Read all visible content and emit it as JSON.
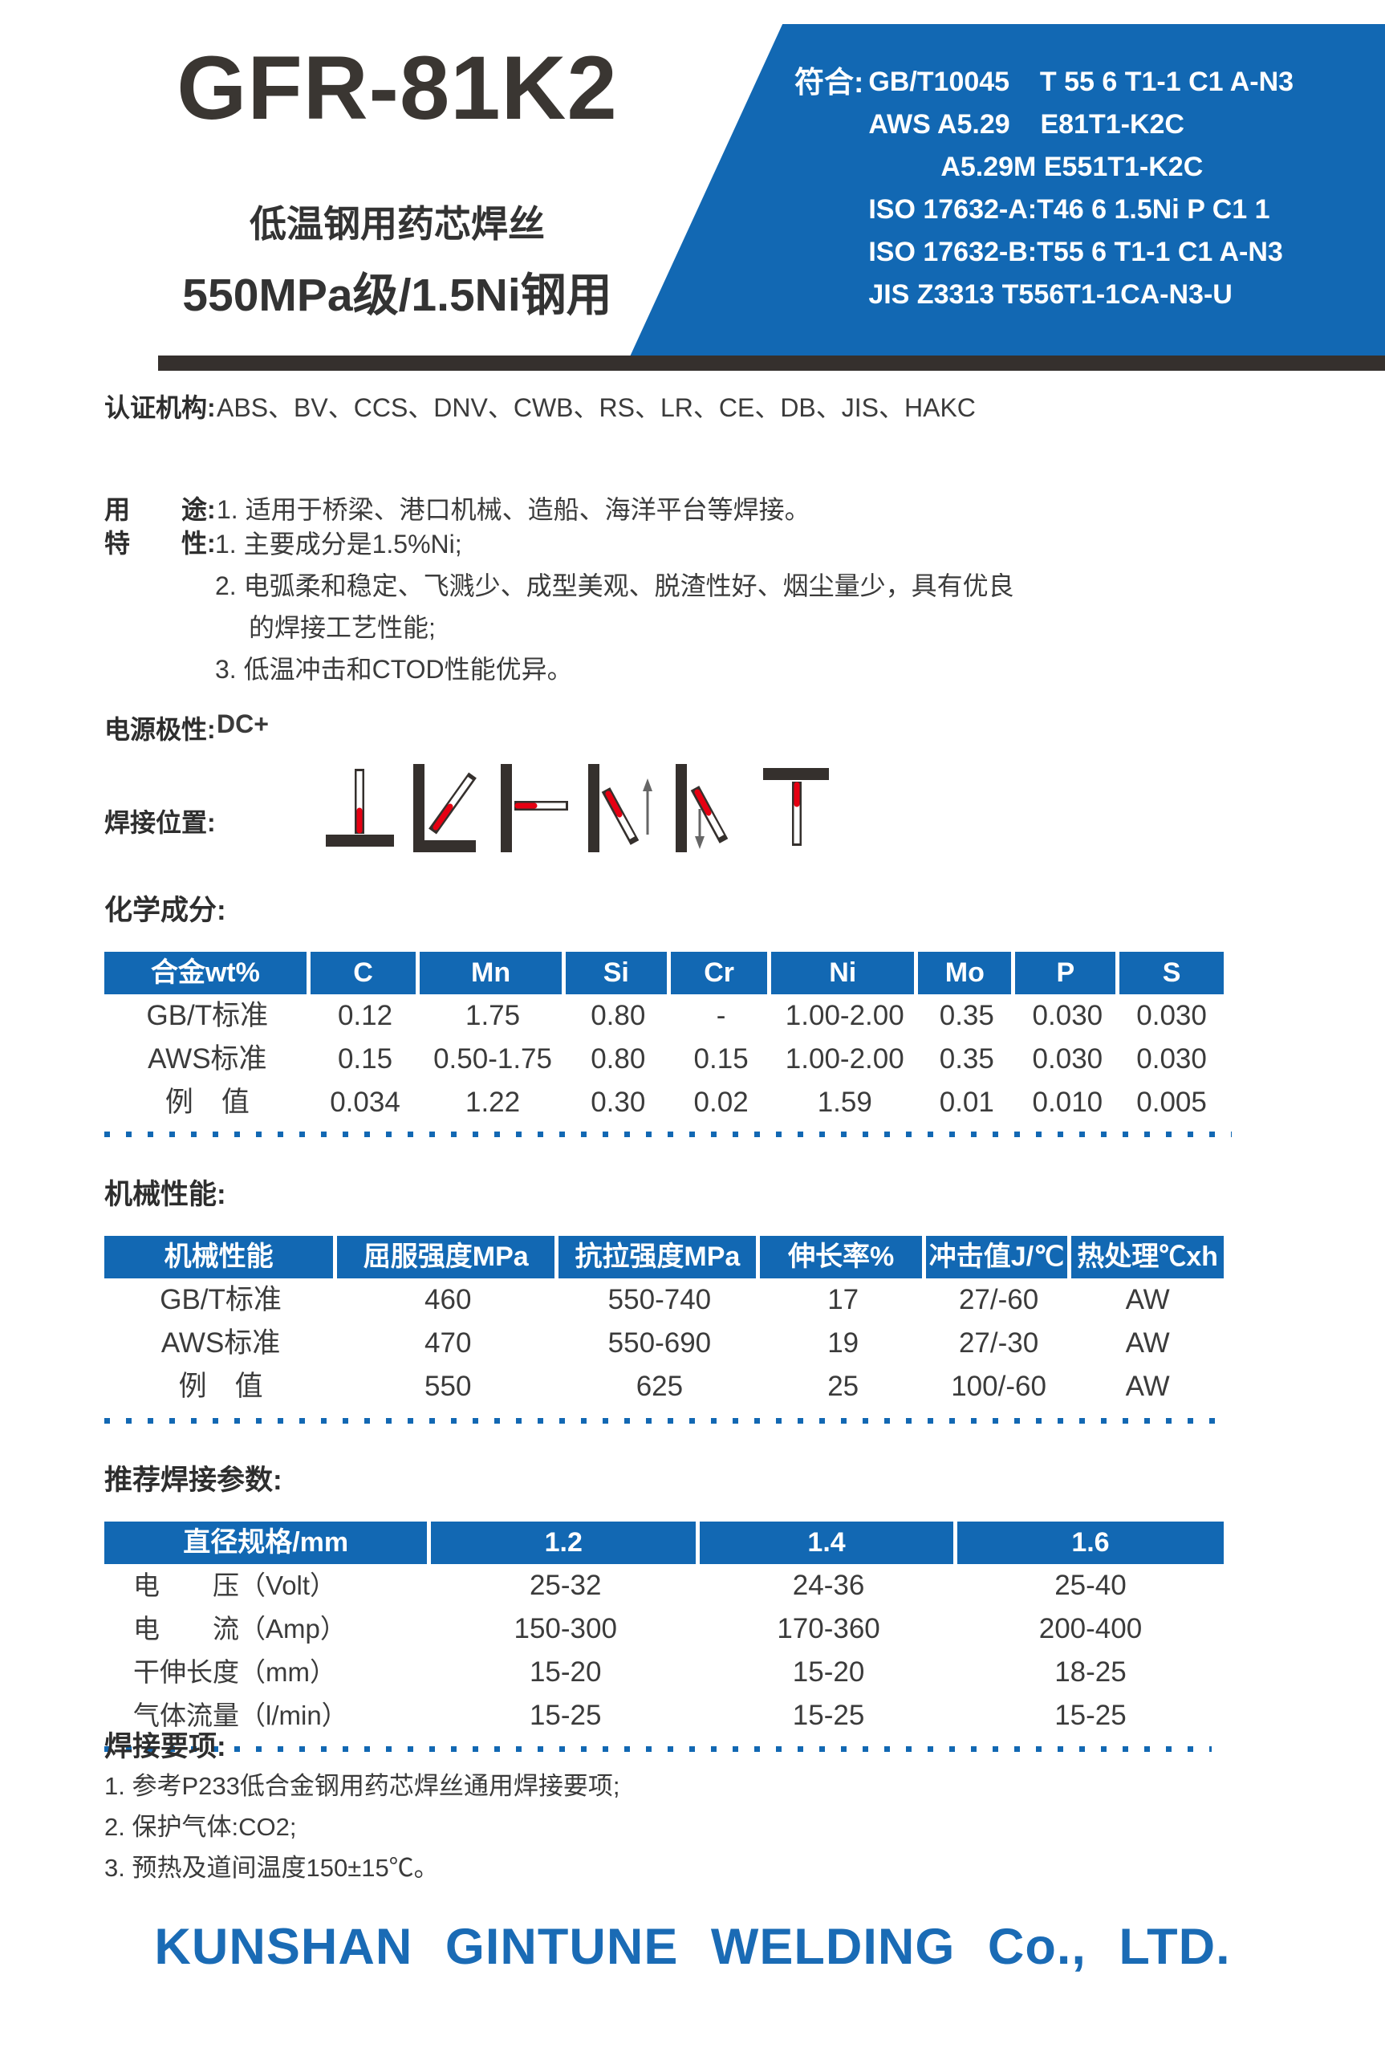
{
  "header": {
    "product_code": "GFR-81K2",
    "subtitle1": "低温钢用药芯焊丝",
    "subtitle2": "550MPa级/1.5Ni钢用",
    "standards_label": "符合:",
    "standards": [
      "GB/T10045    T 55 6 T1-1 C1 A-N3",
      "AWS A5.29    E81T1-K2C",
      "A5.29M E551T1-K2C",
      "ISO 17632-A:T46 6 1.5Ni P C1 1",
      "ISO 17632-B:T55 6 T1-1 C1 A-N3",
      "JIS Z3313 T556T1-1CA-N3-U"
    ]
  },
  "info": {
    "certification": {
      "label": "认证机构:",
      "value": "ABS、BV、CCS、DNV、CWB、RS、LR、CE、DB、JIS、HAKC"
    },
    "usage": {
      "label": "用　　途:",
      "value": "1. 适用于桥梁、港口机械、造船、海洋平台等焊接。"
    },
    "features": {
      "label": "特　　性:",
      "items": [
        "1. 主要成分是1.5%Ni;",
        "2. 电弧柔和稳定、飞溅少、成型美观、脱渣性好、烟尘量少，具有优良",
        "的焊接工艺性能;",
        "3. 低温冲击和CTOD性能优异。"
      ]
    },
    "polarity": {
      "label": "电源极性:",
      "value": "DC+"
    },
    "positions": {
      "label": "焊接位置:",
      "icons": [
        "flat",
        "horizontal-fillet",
        "horizontal",
        "vertical-up",
        "vertical-down",
        "overhead"
      ]
    }
  },
  "chemical": {
    "title": "化学成分:",
    "headers": [
      "合金wt%",
      "C",
      "Mn",
      "Si",
      "Cr",
      "Ni",
      "Mo",
      "P",
      "S"
    ],
    "rows": [
      [
        "GB/T标准",
        "0.12",
        "1.75",
        "0.80",
        "-",
        "1.00-2.00",
        "0.35",
        "0.030",
        "0.030"
      ],
      [
        "AWS标准",
        "0.15",
        "0.50-1.75",
        "0.80",
        "0.15",
        "1.00-2.00",
        "0.35",
        "0.030",
        "0.030"
      ],
      [
        "例　值",
        "0.034",
        "1.22",
        "0.30",
        "0.02",
        "1.59",
        "0.01",
        "0.010",
        "0.005"
      ]
    ]
  },
  "mechanical": {
    "title": "机械性能:",
    "headers": [
      "机械性能",
      "屈服强度MPa",
      "抗拉强度MPa",
      "伸长率%",
      "冲击值J/℃",
      "热处理℃xh"
    ],
    "rows": [
      [
        "GB/T标准",
        "460",
        "550-740",
        "17",
        "27/-60",
        "AW"
      ],
      [
        "AWS标准",
        "470",
        "550-690",
        "19",
        "27/-30",
        "AW"
      ],
      [
        "例　值",
        "550",
        "625",
        "25",
        "100/-60",
        "AW"
      ]
    ]
  },
  "parameters": {
    "title": "推荐焊接参数:",
    "headers": [
      "直径规格/mm",
      "1.2",
      "1.4",
      "1.6"
    ],
    "rows": [
      [
        "电　　压（Volt）",
        "25-32",
        "24-36",
        "25-40"
      ],
      [
        "电　　流（Amp）",
        "150-300",
        "170-360",
        "200-400"
      ],
      [
        "干伸长度（mm）",
        "15-20",
        "15-20",
        "18-25"
      ],
      [
        "气体流量（l/min）",
        "15-25",
        "15-25",
        "15-25"
      ]
    ]
  },
  "notes": {
    "title": "焊接要项:",
    "items": [
      "1. 参考P233低合金钢用药芯焊丝通用焊接要项;",
      "2. 保护气体:CO2;",
      "3. 预热及道间温度150±15℃。"
    ]
  },
  "footer": {
    "company": "KUNSHAN GINTUNE WELDING Co., LTD."
  },
  "colors": {
    "accent_blue": "#1268b3",
    "dark_bar": "#35302d",
    "footer_blue": "#1a6bb5",
    "wire_red": "#e60012"
  }
}
